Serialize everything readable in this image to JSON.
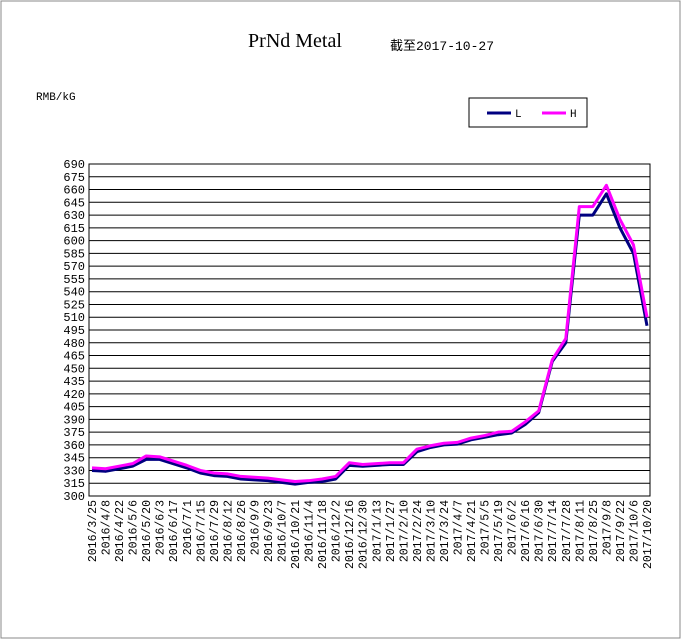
{
  "chart_data": {
    "type": "line",
    "title": "PrNd Metal",
    "subtitle": "截至2017-10-27",
    "y_label": "RMB/kG",
    "categories": [
      "2016/3/25",
      "2016/4/8",
      "2016/4/22",
      "2016/5/6",
      "2016/5/20",
      "2016/6/3",
      "2016/6/17",
      "2016/7/1",
      "2016/7/15",
      "2016/7/29",
      "2016/8/12",
      "2016/8/26",
      "2016/9/9",
      "2016/9/23",
      "2016/10/7",
      "2016/10/21",
      "2016/11/4",
      "2016/11/18",
      "2016/12/2",
      "2016/12/16",
      "2016/12/30",
      "2017/1/13",
      "2017/1/27",
      "2017/2/10",
      "2017/2/24",
      "2017/3/10",
      "2017/3/24",
      "2017/4/7",
      "2017/4/21",
      "2017/5/5",
      "2017/5/19",
      "2017/6/2",
      "2017/6/16",
      "2017/6/30",
      "2017/7/14",
      "2017/7/28",
      "2017/8/11",
      "2017/8/25",
      "2017/9/8",
      "2017/9/22",
      "2017/10/6",
      "2017/10/20"
    ],
    "series": [
      {
        "name": "L",
        "color": "#000080",
        "values": [
          330,
          329,
          332,
          335,
          343,
          343,
          338,
          333,
          327,
          324,
          323,
          320,
          319,
          318,
          316,
          314,
          316,
          317,
          320,
          336,
          335,
          336,
          337,
          337,
          352,
          357,
          360,
          361,
          366,
          369,
          372,
          374,
          384,
          398,
          458,
          480,
          630,
          630,
          655,
          615,
          585,
          500
        ]
      },
      {
        "name": "H",
        "color": "#ff00ff",
        "values": [
          333,
          332,
          335,
          338,
          347,
          346,
          341,
          336,
          330,
          327,
          326,
          323,
          322,
          321,
          319,
          317,
          318,
          320,
          323,
          339,
          337,
          338,
          339,
          339,
          355,
          359,
          362,
          363,
          368,
          371,
          375,
          376,
          387,
          400,
          460,
          485,
          640,
          640,
          665,
          625,
          595,
          510
        ]
      }
    ],
    "ylim": [
      300,
      690
    ],
    "yticks": [
      300,
      315,
      330,
      345,
      360,
      375,
      390,
      405,
      420,
      435,
      450,
      465,
      480,
      495,
      510,
      525,
      540,
      555,
      570,
      585,
      600,
      615,
      630,
      645,
      660,
      675,
      690
    ],
    "grid": true
  }
}
